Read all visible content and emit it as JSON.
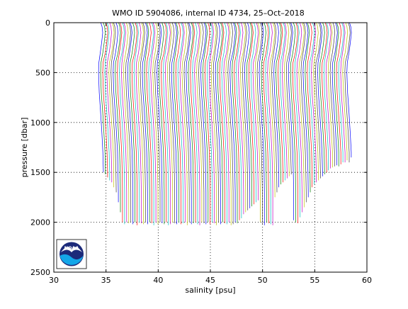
{
  "chart_data": {
    "type": "line",
    "title": "WMO ID 5904086, internal ID 4734, 25–Oct–2018",
    "xlabel": "salinity [psu]",
    "ylabel": "pressure [dbar]",
    "xlim": [
      30,
      60
    ],
    "ylim": [
      2500,
      0
    ],
    "y_reversed": true,
    "grid": "dotted",
    "x_ticks": [
      "30",
      "35",
      "40",
      "45",
      "50",
      "55",
      "60"
    ],
    "y_ticks": [
      "0",
      "500",
      "1000",
      "1500",
      "2000",
      "2500"
    ],
    "legend": "none",
    "annotation": "waterfall of salinity profiles; each successive profile offset by +0.2 psu",
    "profile_count": 120,
    "offset_step_psu": 0.2,
    "base_salinity_psu": 34.8,
    "line_colors": [
      "#0000ff",
      "#008000",
      "#ff0000",
      "#00bfbf",
      "#bf00bf",
      "#bfbf00",
      "#404040"
    ],
    "max_depths_dbar": [
      1500,
      1520,
      1550,
      1580,
      1600,
      1650,
      1700,
      1800,
      1900,
      2000,
      2020,
      2000,
      2010,
      2000,
      2020,
      2000,
      2030,
      2000,
      2010,
      2020,
      2000,
      2020,
      2000,
      2010,
      2030,
      2000,
      2020,
      2000,
      2010,
      2020,
      2000,
      2030,
      2020,
      2000,
      2010,
      2020,
      2000,
      2020,
      2010,
      2000,
      2030,
      2000,
      2020,
      2010,
      2000,
      2020,
      2030,
      2000,
      2010,
      2020,
      2000,
      2020,
      2000,
      2010,
      2030,
      2000,
      2020,
      2000,
      2010,
      2020,
      2000,
      2030,
      2020,
      2000,
      2010,
      1980,
      1960,
      1920,
      1900,
      1880,
      1860,
      1840,
      1820,
      1800,
      1780,
      2000,
      2020,
      2030,
      2000,
      2010,
      2020,
      2030,
      1750,
      1700,
      1650,
      1620,
      1600,
      1580,
      1560,
      1540,
      1520,
      1980,
      2000,
      2010,
      1950,
      1900,
      1850,
      1800,
      1750,
      1700,
      1650,
      1620,
      1600,
      1580,
      1560,
      1540,
      1520,
      1500,
      1480,
      1460,
      1450,
      1440,
      1430,
      1440,
      1420,
      1400,
      1400,
      1380,
      1400,
      1350
    ]
  },
  "logo": {
    "text": "NOAA",
    "colors": {
      "navy": "#1c2a7a",
      "sky": "#13a6e8",
      "white": "#ffffff"
    }
  }
}
